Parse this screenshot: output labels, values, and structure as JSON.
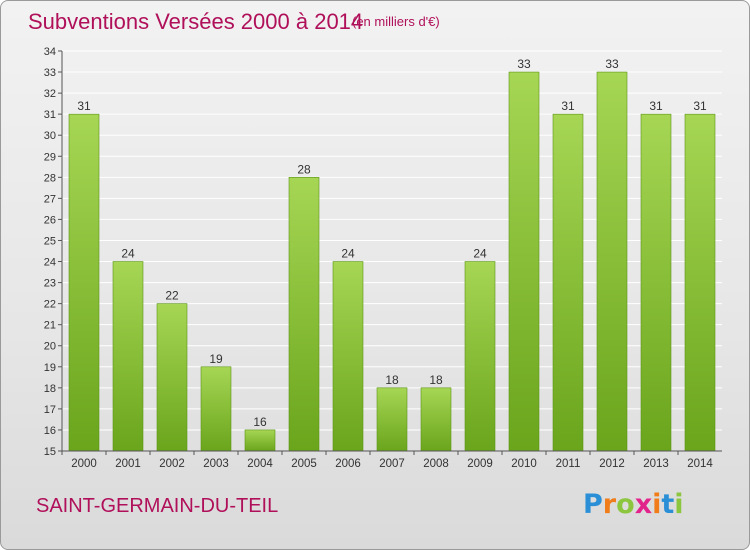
{
  "header": {
    "title": "Subventions Versées 2000 à 2014",
    "subtitle": "(en milliers d'€)"
  },
  "footer": {
    "commune": "SAINT-GERMAIN-DU-TEIL",
    "logo_letters": [
      "P",
      "r",
      "o",
      "x",
      "i",
      "t",
      "i"
    ],
    "logo_colors": [
      "#2a8fd6",
      "#f07d1a",
      "#8cc63f",
      "#e3238c",
      "#f07d1a",
      "#2a8fd6",
      "#8cc63f"
    ]
  },
  "colors": {
    "bar_light": "#a6d654",
    "bar_dark": "#6aa51c",
    "title": "#b0105a",
    "grid": "#ffffff"
  },
  "chart_data": {
    "type": "bar",
    "title": "Subventions Versées 2000 à 2014",
    "subtitle": "(en milliers d'€)",
    "categories": [
      "2000",
      "2001",
      "2002",
      "2003",
      "2004",
      "2005",
      "2006",
      "2007",
      "2008",
      "2009",
      "2010",
      "2011",
      "2012",
      "2013",
      "2014"
    ],
    "values": [
      31,
      24,
      22,
      19,
      16,
      28,
      24,
      18,
      18,
      24,
      33,
      31,
      33,
      31,
      31
    ],
    "ylim": [
      15,
      34
    ],
    "yticks": [
      15,
      16,
      17,
      18,
      19,
      20,
      21,
      22,
      23,
      24,
      25,
      26,
      27,
      28,
      29,
      30,
      31,
      32,
      33,
      34
    ],
    "grid": true,
    "data_labels": true
  }
}
